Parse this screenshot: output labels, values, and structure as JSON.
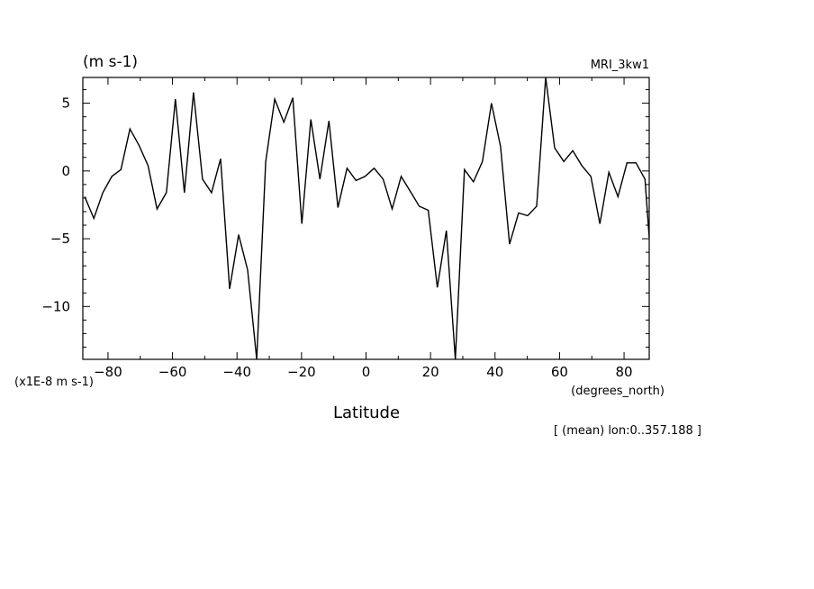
{
  "chart_data": {
    "type": "line",
    "model": "MRI_3kw1",
    "units": "(m s-1)",
    "scale_note": "(x1E-8 m s-1)",
    "xlabel": "Latitude",
    "x_units": "(degrees_north)",
    "annotation": "[ (mean) lon:0..357.188 ]",
    "xlim": [
      -87.8,
      87.8
    ],
    "ylim": [
      -13.9,
      6.9
    ],
    "x_ticks": [
      -80,
      -60,
      -40,
      -20,
      0,
      20,
      40,
      60,
      80
    ],
    "x_tick_labels": [
      "−80",
      "−60",
      "−40",
      "−20",
      "0",
      "20",
      "40",
      "60",
      "80"
    ],
    "y_ticks": [
      5,
      0,
      -5,
      -10
    ],
    "y_tick_labels": [
      "5",
      "0",
      "−5",
      "−10"
    ],
    "line_color": "#000000",
    "series": [
      {
        "x": [
          -87.2,
          -84.4,
          -81.6,
          -78.8,
          -76.0,
          -73.2,
          -70.4,
          -67.6,
          -64.8,
          -61.9,
          -59.1,
          -56.3,
          -53.5,
          -50.7,
          -47.9,
          -45.1,
          -42.3,
          -39.5,
          -36.7,
          -33.9,
          -31.1,
          -28.3,
          -25.5,
          -22.7,
          -19.9,
          -17.1,
          -14.3,
          -11.5,
          -8.7,
          -5.9,
          -3.1,
          -0.3,
          2.5,
          5.3,
          8.1,
          10.9,
          13.7,
          16.5,
          19.3,
          22.1,
          24.9,
          27.7,
          30.5,
          33.3,
          36.1,
          38.9,
          41.7,
          44.5,
          47.3,
          50.1,
          52.9,
          55.7,
          58.5,
          61.3,
          64.1,
          66.9,
          69.7,
          72.5,
          75.3,
          78.1,
          80.9,
          83.7,
          86.5,
          87.8
        ],
        "y": [
          -1.9,
          -3.5,
          -1.6,
          -0.4,
          0.1,
          3.1,
          1.9,
          0.4,
          -2.8,
          -1.6,
          5.3,
          -1.6,
          5.8,
          -0.6,
          -1.6,
          0.9,
          -8.7,
          -4.7,
          -7.3,
          -13.9,
          0.7,
          5.3,
          3.6,
          5.4,
          -3.9,
          3.8,
          -0.6,
          3.7,
          -2.7,
          0.2,
          -0.7,
          -0.4,
          0.2,
          -0.6,
          -2.8,
          -0.4,
          -1.5,
          -2.6,
          -2.9,
          -8.6,
          -4.4,
          -13.9,
          0.1,
          -0.8,
          0.7,
          5.0,
          1.8,
          -5.4,
          -3.1,
          -3.3,
          -2.6,
          6.9,
          1.7,
          0.7,
          1.5,
          0.4,
          -0.4,
          -3.9,
          -0.1,
          -1.9,
          0.6,
          0.6,
          -0.6,
          -4.9
        ]
      }
    ]
  }
}
